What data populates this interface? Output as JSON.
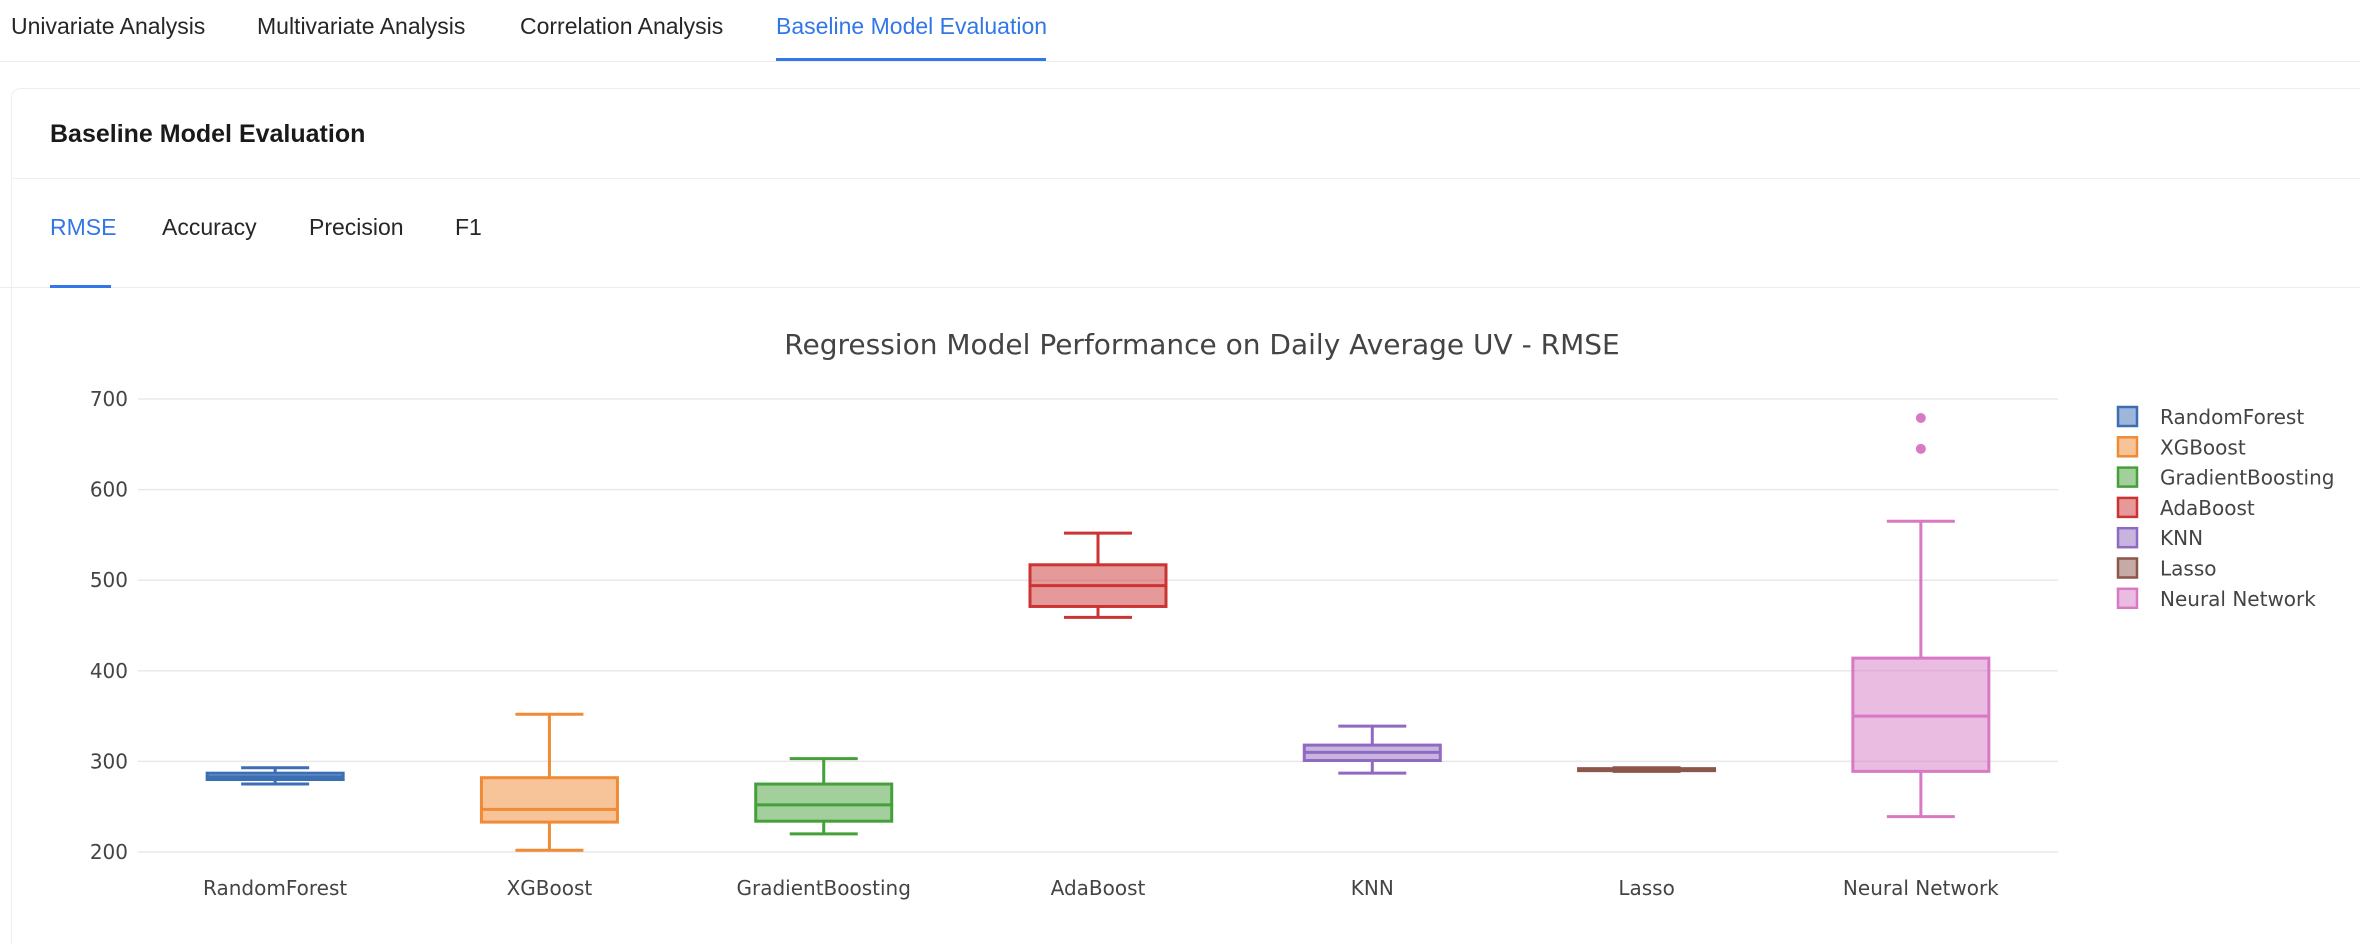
{
  "top_tabs": [
    {
      "label": "Univariate Analysis",
      "active": false
    },
    {
      "label": "Multivariate Analysis",
      "active": false
    },
    {
      "label": "Correlation Analysis",
      "active": false
    },
    {
      "label": "Baseline Model Evaluation",
      "active": true
    }
  ],
  "card": {
    "title": "Baseline Model Evaluation"
  },
  "metric_tabs": [
    {
      "label": "RMSE",
      "active": true
    },
    {
      "label": "Accuracy",
      "active": false
    },
    {
      "label": "Precision",
      "active": false
    },
    {
      "label": "F1",
      "active": false
    }
  ],
  "colors": {
    "accent": "#3277e8"
  },
  "chart_data": {
    "type": "box",
    "title": "Regression Model Performance on Daily Average UV  - RMSE",
    "xlabel": "",
    "ylabel": "",
    "ylim": [
      200,
      700
    ],
    "y_ticks": [
      "700",
      "600",
      "500",
      "400",
      "300",
      "200"
    ],
    "grid": true,
    "legend_position": "right",
    "categories": [
      "RandomForest",
      "XGBoost",
      "GradientBoosting",
      "AdaBoost",
      "KNN",
      "Lasso",
      "Neural Network"
    ],
    "series": [
      {
        "name": "RandomForest",
        "color": "#3c6eb4",
        "min": 275,
        "q1": 280,
        "median": 283,
        "q3": 287,
        "max": 293,
        "outliers": []
      },
      {
        "name": "XGBoost",
        "color": "#f08a35",
        "min": 202,
        "q1": 233,
        "median": 247,
        "q3": 282,
        "max": 352,
        "outliers": []
      },
      {
        "name": "GradientBoosting",
        "color": "#45a03a",
        "min": 220,
        "q1": 234,
        "median": 252,
        "q3": 275,
        "max": 303,
        "outliers": []
      },
      {
        "name": "AdaBoost",
        "color": "#cc3333",
        "min": 459,
        "q1": 471,
        "median": 494,
        "q3": 517,
        "max": 552,
        "outliers": []
      },
      {
        "name": "KNN",
        "color": "#9069c0",
        "min": 287,
        "q1": 301,
        "median": 310,
        "q3": 318,
        "max": 339,
        "outliers": []
      },
      {
        "name": "Lasso",
        "color": "#8c564b",
        "min": 289,
        "q1": 290,
        "median": 291,
        "q3": 292,
        "max": 293,
        "outliers": []
      },
      {
        "name": "Neural Network",
        "color": "#d879c4",
        "min": 239,
        "q1": 289,
        "median": 350,
        "q3": 414,
        "max": 565,
        "outliers": [
          645,
          679
        ]
      }
    ]
  }
}
